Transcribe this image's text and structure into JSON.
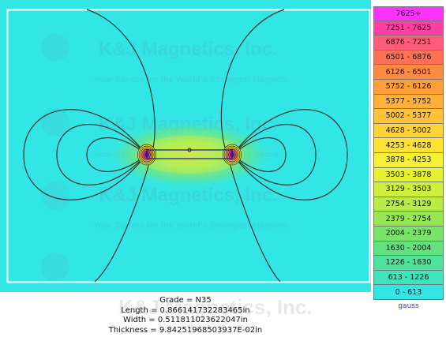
{
  "watermark": {
    "brand": "K&J Magnetics, Inc.",
    "tagline": "Your Source for the World's Strongest Magnets"
  },
  "plot": {
    "background_color": "#33e6e6",
    "field_line_color": "#333333",
    "magnet_outline_color": "#1a1a8a"
  },
  "legend": {
    "unit": "gauss",
    "bands": [
      {
        "label": "7625+",
        "color": "#ff33ff"
      },
      {
        "label": "7251 - 7625",
        "color": "#ff3fa4"
      },
      {
        "label": "6876 - 7251",
        "color": "#ff5c7a"
      },
      {
        "label": "6501 - 6876",
        "color": "#ff7055"
      },
      {
        "label": "6126 - 6501",
        "color": "#ff8a44"
      },
      {
        "label": "5752 - 6126",
        "color": "#ff9e3a"
      },
      {
        "label": "5377 - 5752",
        "color": "#ffb03a"
      },
      {
        "label": "5002 - 5377",
        "color": "#ffc238"
      },
      {
        "label": "4628 - 5002",
        "color": "#ffd236"
      },
      {
        "label": "4253 - 4628",
        "color": "#ffe234"
      },
      {
        "label": "3878 - 4253",
        "color": "#f6f032"
      },
      {
        "label": "3503 - 3878",
        "color": "#e4f232"
      },
      {
        "label": "3129 - 3503",
        "color": "#cff03a"
      },
      {
        "label": "2754 - 3129",
        "color": "#b6ec44"
      },
      {
        "label": "2379 - 2754",
        "color": "#98e652"
      },
      {
        "label": "2004 - 2379",
        "color": "#7ae468"
      },
      {
        "label": "1630 - 2004",
        "color": "#62e27e"
      },
      {
        "label": "1226 - 1630",
        "color": "#4ee29a"
      },
      {
        "label": "613 - 1226",
        "color": "#3ee4bc"
      },
      {
        "label": "0 - 613",
        "color": "#33e6e6"
      }
    ]
  },
  "info": {
    "grade": "Grade = N35",
    "length": "Length = 0.866141732283465in",
    "width": "Width = 0.511811023622047in",
    "thickness": "Thickness = 9.84251968503937E-02in"
  }
}
